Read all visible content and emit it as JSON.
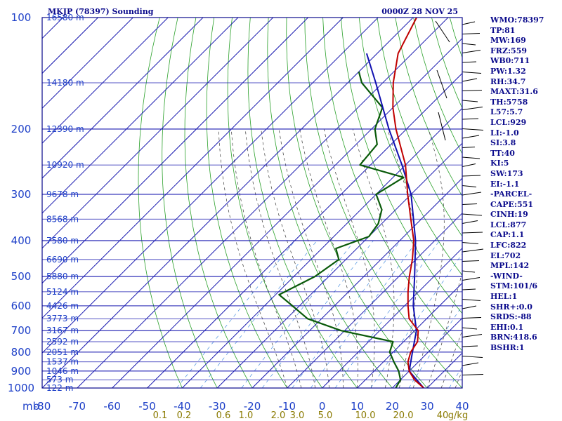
{
  "header": {
    "station": "MKJP (78397) Sounding",
    "time": "0000Z 28 NOV 25"
  },
  "chart_data": {
    "type": "skew-t",
    "pressure_unit": "mb",
    "pressure_levels": [
      100,
      200,
      300,
      400,
      500,
      600,
      700,
      800,
      900,
      1000
    ],
    "temperature_ticks": [
      -80,
      -70,
      -60,
      -50,
      -40,
      -30,
      -20,
      -10,
      0,
      10,
      20,
      30,
      40
    ],
    "mixing_ratio_labels": [
      "0.1",
      "0.2",
      "0.6",
      "1.0",
      "2.0",
      "3.0",
      "5.0",
      "10.0",
      "20.0",
      "40",
      "g/kg"
    ],
    "height_labels": [
      {
        "p": 100,
        "text": "16580 m"
      },
      {
        "p": 150,
        "text": "14180 m"
      },
      {
        "p": 200,
        "text": "12390 m"
      },
      {
        "p": 250,
        "text": "10920 m"
      },
      {
        "p": 300,
        "text": "9678 m"
      },
      {
        "p": 350,
        "text": "8568 m"
      },
      {
        "p": 400,
        "text": "7580 m"
      },
      {
        "p": 450,
        "text": "6690 m"
      },
      {
        "p": 500,
        "text": "5880 m"
      },
      {
        "p": 550,
        "text": "5124 m"
      },
      {
        "p": 600,
        "text": "4426 m"
      },
      {
        "p": 650,
        "text": "3773 m"
      },
      {
        "p": 700,
        "text": "3167 m"
      },
      {
        "p": 750,
        "text": "2592 m"
      },
      {
        "p": 800,
        "text": "2051 m"
      },
      {
        "p": 850,
        "text": "1537 m"
      },
      {
        "p": 900,
        "text": "1046 m"
      },
      {
        "p": 950,
        "text": "573 m"
      },
      {
        "p": 1000,
        "text": "122 m"
      }
    ],
    "temperature_profile": [
      {
        "p": 1000,
        "t": 29
      },
      {
        "p": 950,
        "t": 24
      },
      {
        "p": 900,
        "t": 20
      },
      {
        "p": 850,
        "t": 17
      },
      {
        "p": 800,
        "t": 15
      },
      {
        "p": 750,
        "t": 14
      },
      {
        "p": 700,
        "t": 11
      },
      {
        "p": 650,
        "t": 5
      },
      {
        "p": 600,
        "t": 1
      },
      {
        "p": 550,
        "t": -3
      },
      {
        "p": 500,
        "t": -7
      },
      {
        "p": 450,
        "t": -11
      },
      {
        "p": 400,
        "t": -16
      },
      {
        "p": 350,
        "t": -23
      },
      {
        "p": 300,
        "t": -31
      },
      {
        "p": 250,
        "t": -40
      },
      {
        "p": 200,
        "t": -53
      },
      {
        "p": 175,
        "t": -60
      },
      {
        "p": 150,
        "t": -67
      },
      {
        "p": 125,
        "t": -74
      },
      {
        "p": 100,
        "t": -79
      }
    ],
    "dewpoint_profile": [
      {
        "p": 1000,
        "td": 21
      },
      {
        "p": 950,
        "td": 20
      },
      {
        "p": 900,
        "td": 17
      },
      {
        "p": 850,
        "td": 13
      },
      {
        "p": 800,
        "td": 9
      },
      {
        "p": 750,
        "td": 7
      },
      {
        "p": 700,
        "td": -11
      },
      {
        "p": 650,
        "td": -24
      },
      {
        "p": 600,
        "td": -32
      },
      {
        "p": 560,
        "td": -39
      },
      {
        "p": 500,
        "td": -34
      },
      {
        "p": 450,
        "td": -32
      },
      {
        "p": 420,
        "td": -36
      },
      {
        "p": 390,
        "td": -30
      },
      {
        "p": 360,
        "td": -31
      },
      {
        "p": 330,
        "td": -34
      },
      {
        "p": 300,
        "td": -40
      },
      {
        "p": 270,
        "td": -37
      },
      {
        "p": 250,
        "td": -53
      },
      {
        "p": 220,
        "td": -54
      },
      {
        "p": 200,
        "td": -59
      },
      {
        "p": 175,
        "td": -63
      },
      {
        "p": 150,
        "td": -76
      },
      {
        "p": 140,
        "td": -80
      }
    ],
    "parcel_profile": [
      {
        "p": 1000,
        "t": 29
      },
      {
        "p": 900,
        "t": 20
      },
      {
        "p": 800,
        "t": 15.5
      },
      {
        "p": 700,
        "t": 10.5
      },
      {
        "p": 600,
        "t": 2.5
      },
      {
        "p": 500,
        "t": -5.5
      },
      {
        "p": 400,
        "t": -15.5
      },
      {
        "p": 300,
        "t": -30
      },
      {
        "p": 250,
        "t": -41
      },
      {
        "p": 200,
        "t": -55
      },
      {
        "p": 150,
        "t": -72
      },
      {
        "p": 125,
        "t": -83
      }
    ],
    "grid": true,
    "legend": "right"
  },
  "indices": [
    "WMO:78397",
    "TP:81",
    "MW:169",
    "FRZ:559",
    "WB0:711",
    "PW:1.32",
    "RH:34.7",
    "MAXT:31.6",
    "TH:5758",
    "L57:5.7",
    "LCL:929",
    "LI:-1.0",
    "SI:3.8",
    "TT:40",
    "KI:5",
    "SW:173",
    "EI:-1.1",
    "-PARCEL-",
    "CAPE:551",
    "CINH:19",
    "LCL:877",
    "CAP:1.1",
    "LFC:822",
    "EL:702",
    "MPL:142",
    "-WIND-",
    "STM:101/6",
    "HEL:1",
    "SHR+:0.0",
    "SRDS:-88",
    "EHI:0.1",
    "BRN:418.6",
    "BSHR:1"
  ],
  "colors": {
    "frame": "#0b0b8c",
    "isobar": "#1a1ab0",
    "isotherm": "#1a1ab0",
    "dry_adiabat": "#2aa02a",
    "moist_adiabat": "#3a3a3a",
    "mixing_ratio": "#4a90e0",
    "temperature": "#c00000",
    "dewpoint": "#0a5a0a",
    "parcel": "#1010b0",
    "axis_text": "#1e40c8",
    "mixing_text": "#8a7a00",
    "header_text": "#0b0b8c"
  }
}
